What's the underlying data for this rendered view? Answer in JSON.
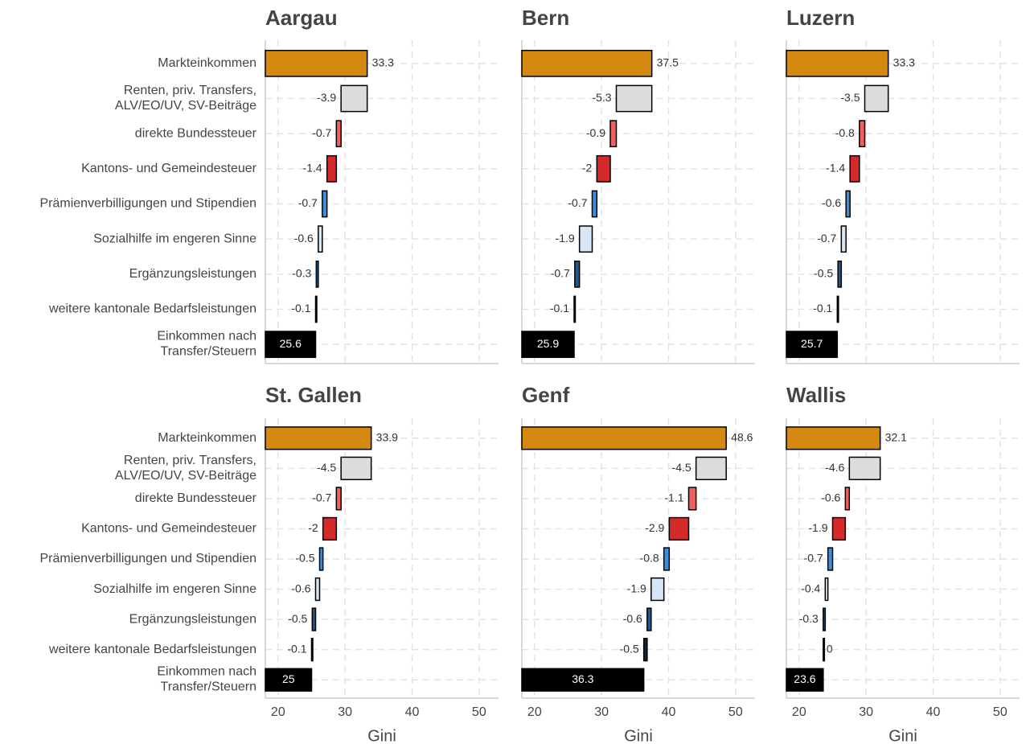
{
  "chart_data": {
    "type": "waterfall",
    "categories": [
      "Markteinkommen",
      "Renten, priv. Transfers,\nALV/EO/UV, SV-Beiträge",
      "direkte Bundessteuer",
      "Kantons- und Gemeindesteuer",
      "Prämienverbilligungen und Stipendien",
      "Sozialhilfe im engeren Sinne",
      "Ergänzungsleistungen",
      "weitere kantonale Bedarfsleistungen",
      "Einkommen nach\nTransfer/Steuern"
    ],
    "colors": [
      "#d68910",
      "#dcdcdc",
      "#f06060",
      "#d42a2a",
      "#3a8fd6",
      "#d6e6f4",
      "#1f5a8a",
      "#0c2640",
      "#000000"
    ],
    "xlabel": "Gini",
    "xlim": [
      18.1,
      52.9
    ],
    "xticks": [
      20,
      30,
      40,
      50
    ],
    "grid": true,
    "panels": [
      {
        "title": "Aargau",
        "values": [
          33.3,
          -3.9,
          -0.7,
          -1.4,
          -0.7,
          -0.6,
          -0.3,
          -0.1,
          25.6
        ]
      },
      {
        "title": "Bern",
        "values": [
          37.5,
          -5.3,
          -0.9,
          -2,
          -0.7,
          -1.9,
          -0.7,
          -0.1,
          25.9
        ]
      },
      {
        "title": "Luzern",
        "values": [
          33.3,
          -3.5,
          -0.8,
          -1.4,
          -0.6,
          -0.7,
          -0.5,
          -0.1,
          25.7
        ]
      },
      {
        "title": "St. Gallen",
        "values": [
          33.9,
          -4.5,
          -0.7,
          -2,
          -0.5,
          -0.6,
          -0.5,
          -0.1,
          25
        ]
      },
      {
        "title": "Genf",
        "values": [
          48.6,
          -4.5,
          -1.1,
          -2.9,
          -0.8,
          -1.9,
          -0.6,
          -0.5,
          36.3
        ]
      },
      {
        "title": "Wallis",
        "values": [
          32.1,
          -4.6,
          -0.6,
          -1.9,
          -0.7,
          -0.4,
          -0.3,
          0,
          23.6
        ]
      }
    ]
  }
}
